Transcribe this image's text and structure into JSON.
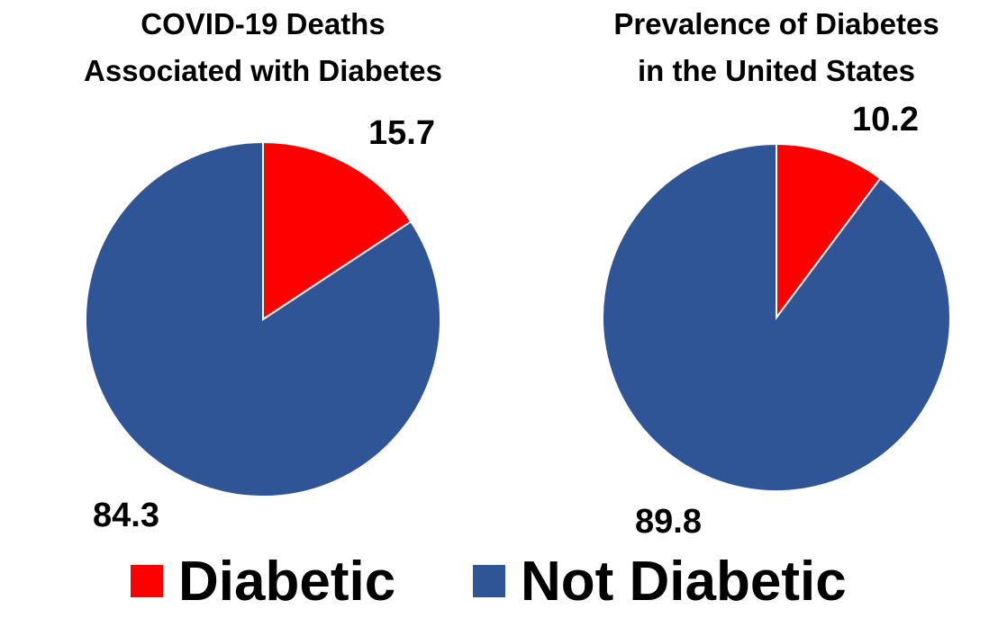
{
  "legend": {
    "items": [
      {
        "label": "Diabetic",
        "color": "#ff0000"
      },
      {
        "label": "Not Diabetic",
        "color": "#2f5597"
      }
    ]
  },
  "chart_data": [
    {
      "type": "pie",
      "title_lines": [
        "COVID-19 Deaths",
        "Associated with Diabetes"
      ],
      "slices": [
        {
          "label": "Diabetic",
          "value": 15.7,
          "value_text": "15.7",
          "color": "#ff0000"
        },
        {
          "label": "Not Diabetic",
          "value": 84.3,
          "value_text": "84.3",
          "color": "#2f5597"
        }
      ]
    },
    {
      "type": "pie",
      "title_lines": [
        "Prevalence of Diabetes",
        "in the United States"
      ],
      "slices": [
        {
          "label": "Diabetic",
          "value": 10.2,
          "value_text": "10.2",
          "color": "#ff0000"
        },
        {
          "label": "Not Diabetic",
          "value": 89.8,
          "value_text": "89.8",
          "color": "#2f5597"
        }
      ]
    }
  ]
}
